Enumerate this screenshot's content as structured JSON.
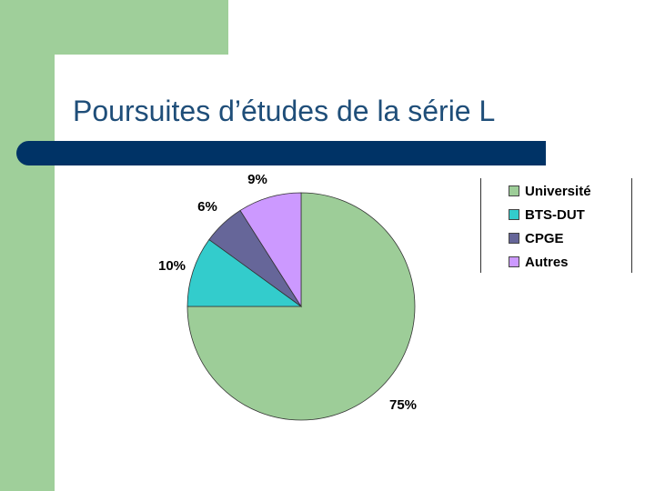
{
  "slide": {
    "title": "Poursuites d’études de la série L"
  },
  "colors": {
    "decor": "#9fcf9a",
    "title": "#1f4e79",
    "title_bar": "#003366"
  },
  "chart_data": {
    "type": "pie",
    "title": "",
    "slices": [
      {
        "label": "Université",
        "value": 75,
        "display": "75%",
        "color": "#9dcd98"
      },
      {
        "label": "BTS-DUT",
        "value": 10,
        "display": "10%",
        "color": "#33cccc"
      },
      {
        "label": "CPGE",
        "value": 6,
        "display": "6%",
        "color": "#666699"
      },
      {
        "label": "Autres",
        "value": 9,
        "display": "9%",
        "color": "#cc99ff"
      }
    ],
    "legend_position": "right"
  }
}
